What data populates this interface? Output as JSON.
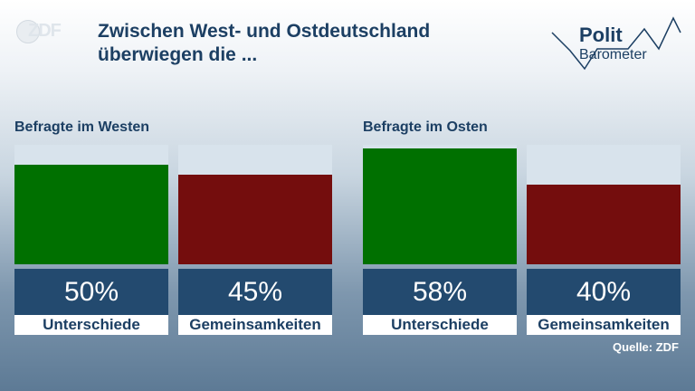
{
  "brand": {
    "logo_text": "ZDF",
    "polit_line1": "Polit",
    "polit_line2": "Barometer"
  },
  "title": "Zwischen West- und Ostdeutschland überwiegen die ...",
  "source": "Quelle: ZDF",
  "colors": {
    "unterschiede": "#007000",
    "gemeinsamkeiten": "#740d0d",
    "value_box": "#234a6f",
    "bar_bg": "#d8e3ec"
  },
  "chart_data": {
    "type": "bar",
    "title": "Zwischen West- und Ostdeutschland überwiegen die ...",
    "ylim": [
      0,
      60
    ],
    "categories": [
      "Unterschiede",
      "Gemeinsamkeiten"
    ],
    "groups": [
      {
        "label": "Befragte im Westen",
        "values": [
          50,
          45
        ],
        "value_labels": [
          "50%",
          "45%"
        ]
      },
      {
        "label": "Befragte im Osten",
        "values": [
          58,
          40
        ],
        "value_labels": [
          "58%",
          "40%"
        ]
      }
    ]
  }
}
